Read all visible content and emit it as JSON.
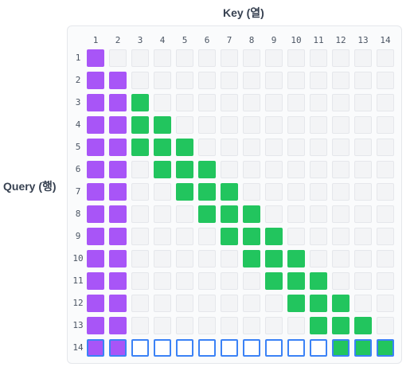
{
  "key_axis_title": "Key (열)",
  "query_axis_title": "Query (행)",
  "n": 14,
  "column_labels": [
    "1",
    "2",
    "3",
    "4",
    "5",
    "6",
    "7",
    "8",
    "9",
    "10",
    "11",
    "12",
    "13",
    "14"
  ],
  "row_labels": [
    "1",
    "2",
    "3",
    "4",
    "5",
    "6",
    "7",
    "8",
    "9",
    "10",
    "11",
    "12",
    "13",
    "14"
  ],
  "colors": {
    "sink": "#a855f7",
    "window": "#22c55e",
    "empty": "#f3f4f6",
    "highlight_border": "#3b82f6"
  },
  "highlighted_row": 14,
  "grid": [
    [
      1,
      0,
      0,
      0,
      0,
      0,
      0,
      0,
      0,
      0,
      0,
      0,
      0,
      0
    ],
    [
      1,
      1,
      0,
      0,
      0,
      0,
      0,
      0,
      0,
      0,
      0,
      0,
      0,
      0
    ],
    [
      1,
      1,
      2,
      0,
      0,
      0,
      0,
      0,
      0,
      0,
      0,
      0,
      0,
      0
    ],
    [
      1,
      1,
      2,
      2,
      0,
      0,
      0,
      0,
      0,
      0,
      0,
      0,
      0,
      0
    ],
    [
      1,
      1,
      2,
      2,
      2,
      0,
      0,
      0,
      0,
      0,
      0,
      0,
      0,
      0
    ],
    [
      1,
      1,
      0,
      2,
      2,
      2,
      0,
      0,
      0,
      0,
      0,
      0,
      0,
      0
    ],
    [
      1,
      1,
      0,
      0,
      2,
      2,
      2,
      0,
      0,
      0,
      0,
      0,
      0,
      0
    ],
    [
      1,
      1,
      0,
      0,
      0,
      2,
      2,
      2,
      0,
      0,
      0,
      0,
      0,
      0
    ],
    [
      1,
      1,
      0,
      0,
      0,
      0,
      2,
      2,
      2,
      0,
      0,
      0,
      0,
      0
    ],
    [
      1,
      1,
      0,
      0,
      0,
      0,
      0,
      2,
      2,
      2,
      0,
      0,
      0,
      0
    ],
    [
      1,
      1,
      0,
      0,
      0,
      0,
      0,
      0,
      2,
      2,
      2,
      0,
      0,
      0
    ],
    [
      1,
      1,
      0,
      0,
      0,
      0,
      0,
      0,
      0,
      2,
      2,
      2,
      0,
      0
    ],
    [
      1,
      1,
      0,
      0,
      0,
      0,
      0,
      0,
      0,
      0,
      2,
      2,
      2,
      0
    ],
    [
      1,
      1,
      0,
      0,
      0,
      0,
      0,
      0,
      0,
      0,
      0,
      2,
      2,
      2
    ]
  ]
}
